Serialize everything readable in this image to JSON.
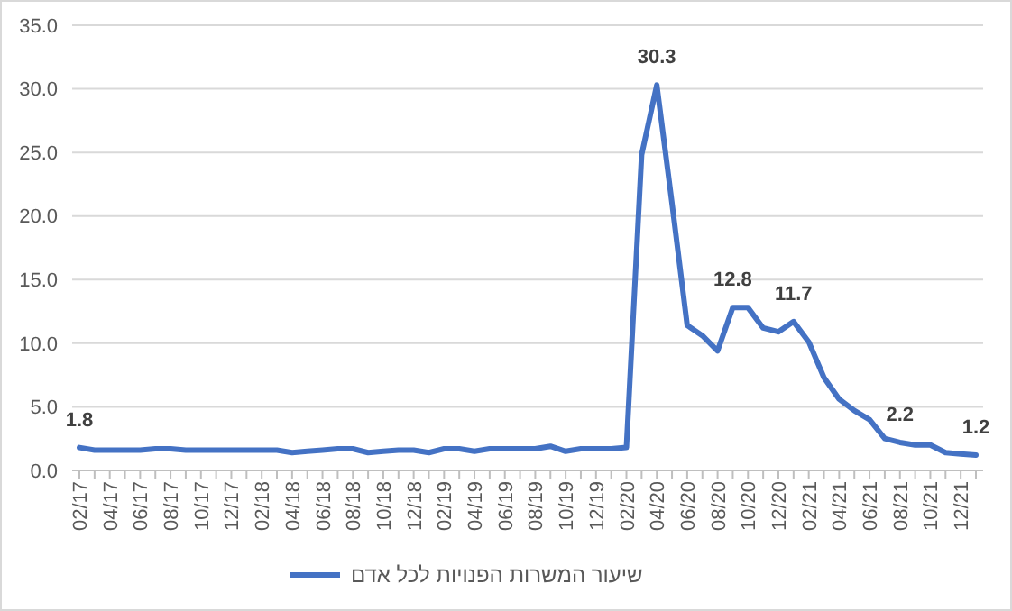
{
  "chart_data": {
    "type": "line",
    "categories": [
      "02/17",
      null,
      "04/17",
      null,
      "06/17",
      null,
      "08/17",
      null,
      "10/17",
      null,
      "12/17",
      null,
      "02/18",
      null,
      "04/18",
      null,
      "06/18",
      null,
      "08/18",
      null,
      "10/18",
      null,
      "12/18",
      null,
      "02/19",
      null,
      "04/19",
      null,
      "06/19",
      null,
      "08/19",
      null,
      "10/19",
      null,
      "12/19",
      null,
      "02/20",
      null,
      "04/20",
      null,
      "06/20",
      null,
      "08/20",
      null,
      "10/20",
      null,
      "12/20",
      null,
      "02/21",
      null,
      "04/21",
      null,
      "06/21",
      null,
      "08/21",
      null,
      "10/21",
      null,
      "12/21",
      null
    ],
    "series": [
      {
        "name": "שיעור המשרות הפנויות לכל אדם",
        "color": "#4472c4",
        "values": [
          1.8,
          1.6,
          1.6,
          1.6,
          1.6,
          1.7,
          1.7,
          1.6,
          1.6,
          1.6,
          1.6,
          1.6,
          1.6,
          1.6,
          1.4,
          1.5,
          1.6,
          1.7,
          1.7,
          1.4,
          1.5,
          1.6,
          1.6,
          1.4,
          1.7,
          1.7,
          1.5,
          1.7,
          1.7,
          1.7,
          1.7,
          1.9,
          1.5,
          1.7,
          1.7,
          1.7,
          1.8,
          24.8,
          30.3,
          21.0,
          11.4,
          10.6,
          9.4,
          12.8,
          12.8,
          11.2,
          10.9,
          11.7,
          10.1,
          7.3,
          5.6,
          4.7,
          4.0,
          2.5,
          2.2,
          2.0,
          2.0,
          1.4,
          1.3,
          1.2
        ],
        "value_labels": [
          "1.8",
          null,
          null,
          null,
          null,
          null,
          null,
          null,
          null,
          null,
          null,
          null,
          null,
          null,
          null,
          null,
          null,
          null,
          null,
          null,
          null,
          null,
          null,
          null,
          null,
          null,
          null,
          null,
          null,
          null,
          null,
          null,
          null,
          null,
          null,
          null,
          null,
          null,
          "30.3",
          null,
          null,
          null,
          null,
          "12.8",
          null,
          null,
          null,
          "11.7",
          null,
          null,
          null,
          null,
          null,
          null,
          "2.2",
          null,
          null,
          null,
          null,
          "1.2"
        ]
      }
    ],
    "ylim": [
      0,
      35
    ],
    "yticks": [
      {
        "value": 0,
        "label": "0.0"
      },
      {
        "value": 5,
        "label": "5.0"
      },
      {
        "value": 10,
        "label": "10.0"
      },
      {
        "value": 15,
        "label": "15.0"
      },
      {
        "value": 20,
        "label": "20.0"
      },
      {
        "value": 25,
        "label": "25.0"
      },
      {
        "value": 30,
        "label": "30.0"
      },
      {
        "value": 35,
        "label": "35.0"
      }
    ],
    "grid": "y",
    "legend": "bottom",
    "marker": "none",
    "line_style": "solid"
  }
}
